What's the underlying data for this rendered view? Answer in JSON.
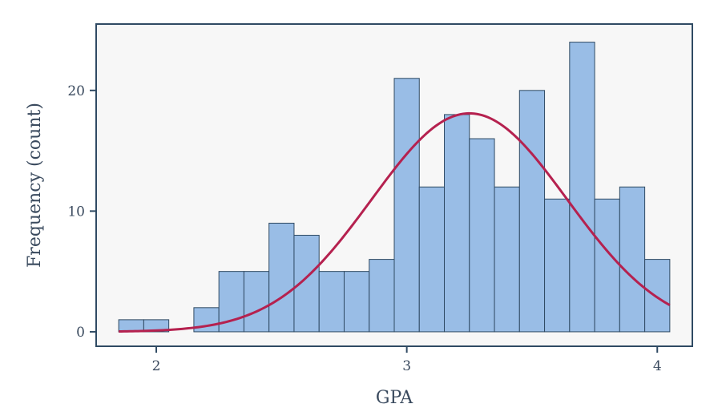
{
  "chart_data": {
    "type": "bar",
    "title": "",
    "xlabel": "GPA",
    "ylabel": "Frequency (count)",
    "xlim": [
      1.76,
      4.14
    ],
    "ylim": [
      -1.2,
      25.5
    ],
    "x_ticks": [
      2,
      3,
      4
    ],
    "y_ticks": [
      0,
      10,
      20
    ],
    "bin_width": 0.1,
    "bins": [
      {
        "start": 1.85,
        "end": 1.95,
        "count": 1
      },
      {
        "start": 1.95,
        "end": 2.05,
        "count": 1
      },
      {
        "start": 2.05,
        "end": 2.15,
        "count": 0
      },
      {
        "start": 2.15,
        "end": 2.25,
        "count": 2
      },
      {
        "start": 2.25,
        "end": 2.35,
        "count": 5
      },
      {
        "start": 2.35,
        "end": 2.45,
        "count": 5
      },
      {
        "start": 2.45,
        "end": 2.55,
        "count": 9
      },
      {
        "start": 2.55,
        "end": 2.65,
        "count": 8
      },
      {
        "start": 2.65,
        "end": 2.75,
        "count": 5
      },
      {
        "start": 2.75,
        "end": 2.85,
        "count": 5
      },
      {
        "start": 2.85,
        "end": 2.95,
        "count": 6
      },
      {
        "start": 2.95,
        "end": 3.05,
        "count": 21
      },
      {
        "start": 3.05,
        "end": 3.15,
        "count": 12
      },
      {
        "start": 3.15,
        "end": 3.25,
        "count": 18
      },
      {
        "start": 3.25,
        "end": 3.35,
        "count": 16
      },
      {
        "start": 3.35,
        "end": 3.45,
        "count": 12
      },
      {
        "start": 3.45,
        "end": 3.55,
        "count": 20
      },
      {
        "start": 3.55,
        "end": 3.65,
        "count": 11
      },
      {
        "start": 3.65,
        "end": 3.75,
        "count": 24
      },
      {
        "start": 3.75,
        "end": 3.85,
        "count": 11
      },
      {
        "start": 3.85,
        "end": 3.95,
        "count": 12
      },
      {
        "start": 3.95,
        "end": 4.05,
        "count": 6
      }
    ],
    "density_curve": {
      "type": "normal",
      "mean": 3.25,
      "sd": 0.39,
      "peak": 18.1,
      "x_range": [
        1.85,
        4.05
      ]
    },
    "grid": false,
    "legend": "none",
    "colors": {
      "bar_fill": "#99bde6",
      "bar_stroke": "#2f4a63",
      "curve": "#b5214f",
      "plot_bg": "#f7f7f7",
      "axis": "#2f4a63",
      "text": "#3a4a5e"
    }
  }
}
